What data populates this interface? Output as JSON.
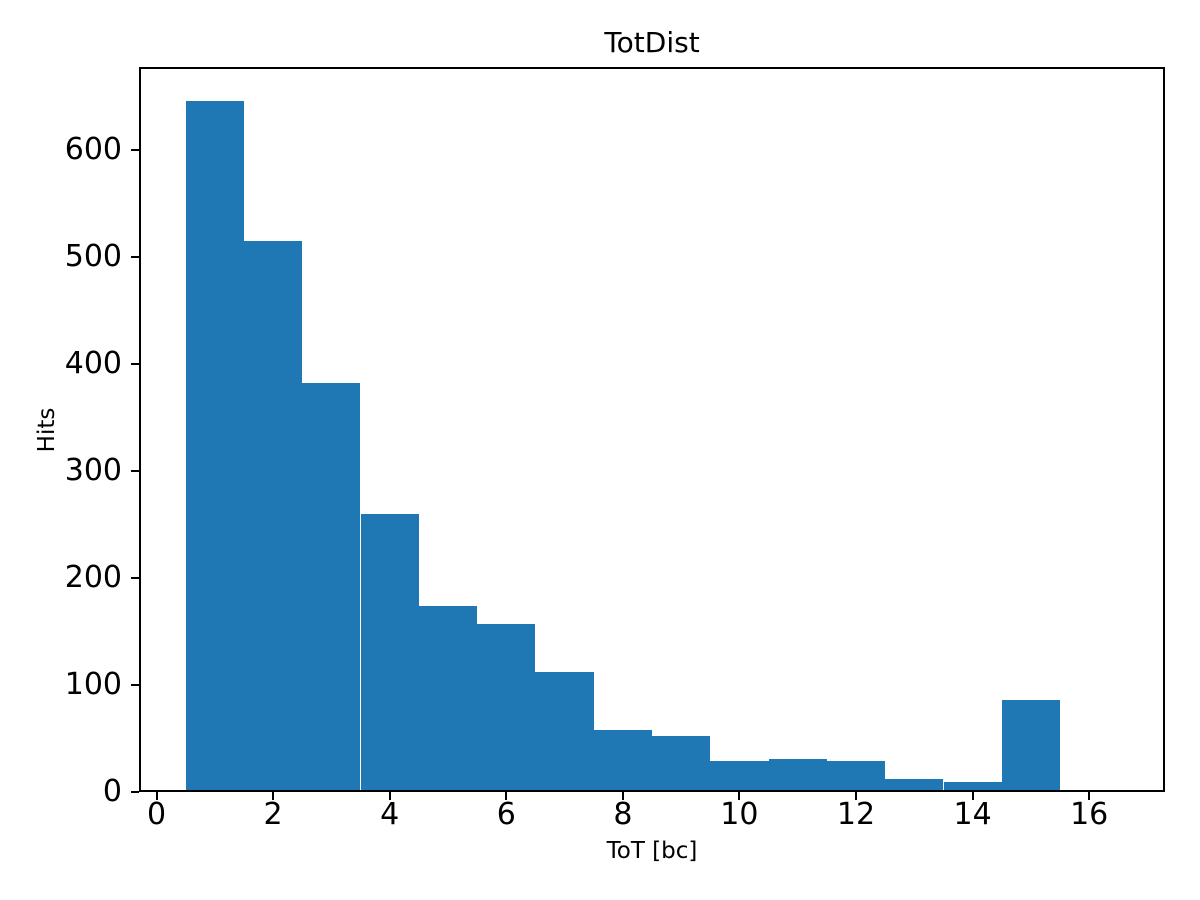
{
  "figure": {
    "background_color": "#ffffff",
    "text_color": "#000000"
  },
  "chart_data": {
    "type": "bar",
    "subtype": "histogram",
    "title": "TotDist",
    "xlabel": "ToT [bc]",
    "ylabel": "Hits",
    "bar_color": "#1f77b4",
    "grid": false,
    "legend": false,
    "bin_edges": [
      0.5,
      1.5,
      2.5,
      3.5,
      4.5,
      5.5,
      6.5,
      7.5,
      8.5,
      9.5,
      10.5,
      11.5,
      12.5,
      13.5,
      14.5,
      15.5
    ],
    "bin_centers": [
      1,
      2,
      3,
      4,
      5,
      6,
      7,
      8,
      9,
      10,
      11,
      12,
      13,
      14,
      15
    ],
    "values": [
      645,
      515,
      382,
      260,
      174,
      157,
      112,
      58,
      52,
      29,
      31,
      29,
      12,
      9,
      86
    ],
    "xlim": [
      -0.3,
      17.3
    ],
    "ylim": [
      0,
      677
    ],
    "xticks": [
      0,
      2,
      4,
      6,
      8,
      10,
      12,
      14,
      16
    ],
    "yticks": [
      0,
      100,
      200,
      300,
      400,
      500,
      600
    ]
  }
}
